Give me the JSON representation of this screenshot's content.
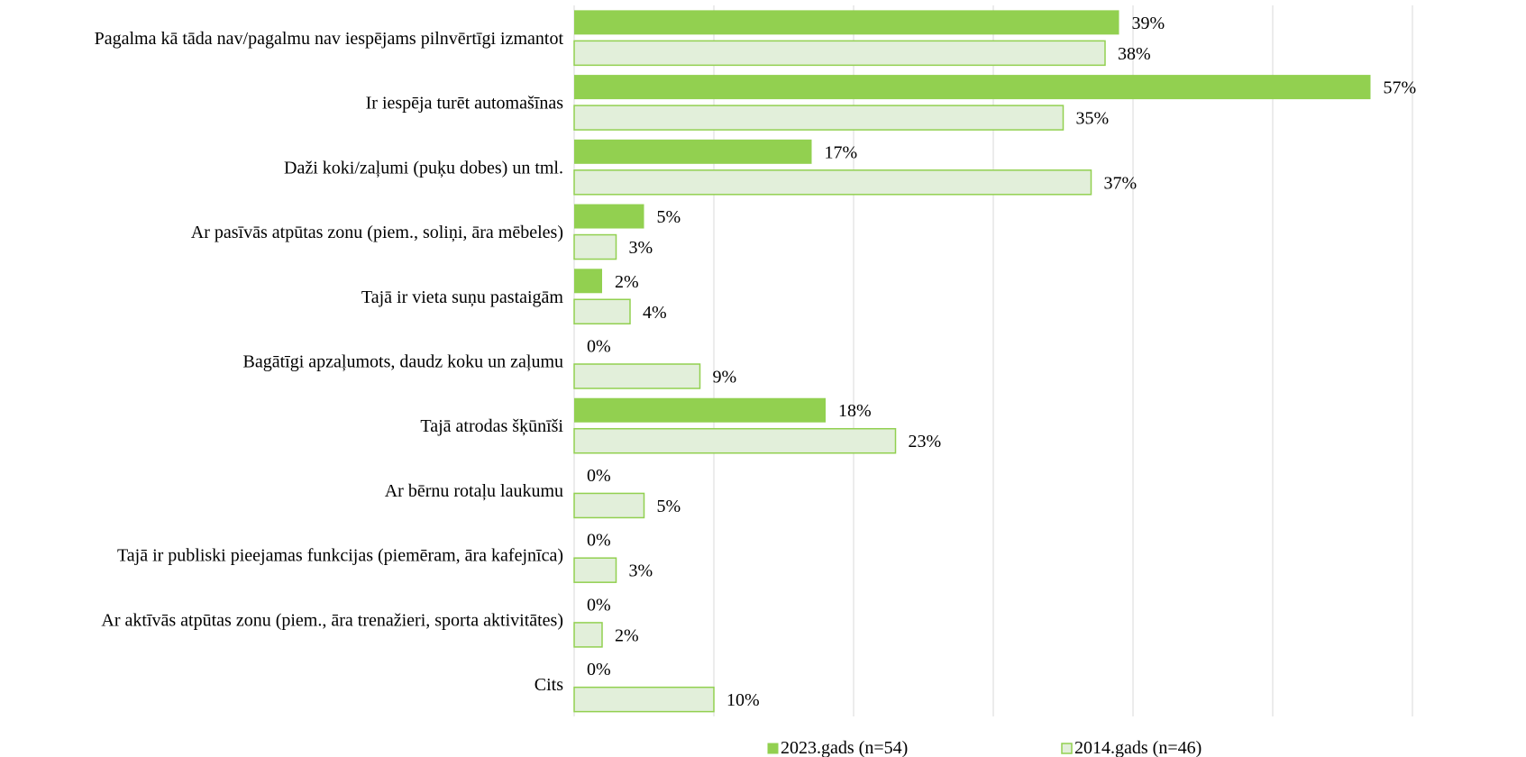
{
  "chart_data": {
    "type": "bar",
    "orientation": "horizontal",
    "categories": [
      "Pagalma kā tāda nav/pagalmu nav iespējams pilnvērtīgi izmantot",
      "Ir iespēja turēt automašīnas",
      "Daži koki/zaļumi (puķu dobes) un tml.",
      "Ar pasīvās atpūtas zonu (piem., soliņi, āra mēbeles)",
      "Tajā ir vieta suņu pastaigām",
      "Bagātīgi apzaļumots, daudz koku un zaļumu",
      "Tajā atrodas šķūnīši",
      "Ar bērnu rotaļu laukumu",
      "Tajā ir publiski pieejamas funkcijas (piemēram, āra kafejnīca)",
      "Ar aktīvās atpūtas zonu (piem., āra trenažieri, sporta aktivitātes)",
      "Cits"
    ],
    "series": [
      {
        "name": "2023.gads (n=54)",
        "values": [
          39,
          57,
          17,
          5,
          2,
          0,
          18,
          0,
          0,
          0,
          0
        ],
        "labels": [
          "39%",
          "57%",
          "17%",
          "5%",
          "2%",
          "0%",
          "18%",
          "0%",
          "0%",
          "0%",
          "0%"
        ],
        "fill": "#92d050",
        "stroke": "#92d050"
      },
      {
        "name": "2014.gads (n=46)",
        "values": [
          38,
          35,
          37,
          3,
          4,
          9,
          23,
          5,
          3,
          2,
          10
        ],
        "labels": [
          "38%",
          "35%",
          "37%",
          "3%",
          "4%",
          "9%",
          "23%",
          "5%",
          "3%",
          "2%",
          "10%"
        ],
        "fill": "#e2efda",
        "stroke": "#92d050"
      }
    ],
    "xlim": [
      0,
      60
    ],
    "grid": true,
    "legend_position": "bottom",
    "gridline_color": "#d9d9d9"
  }
}
